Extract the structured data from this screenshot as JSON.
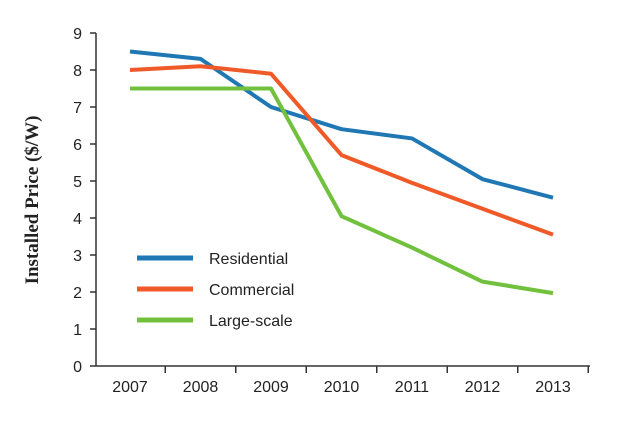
{
  "chart_data": {
    "type": "line",
    "title": "",
    "xlabel": "",
    "ylabel": "Installed Price ($/W)",
    "ylim": [
      0,
      9
    ],
    "yticks": [
      0,
      1,
      2,
      3,
      4,
      5,
      6,
      7,
      8,
      9
    ],
    "categories": [
      "2007",
      "2008",
      "2009",
      "2010",
      "2011",
      "2012",
      "2013"
    ],
    "grid": false,
    "legend_position": "bottom-left",
    "series": [
      {
        "name": "Residential",
        "color": "#1f77b4",
        "values": [
          8.5,
          8.3,
          7.0,
          6.4,
          6.15,
          5.05,
          4.55
        ]
      },
      {
        "name": "Commercial",
        "color": "#f05a28",
        "values": [
          8.0,
          8.1,
          7.9,
          5.7,
          4.95,
          4.25,
          3.55
        ]
      },
      {
        "name": "Large-scale",
        "color": "#72c13e",
        "values": [
          7.5,
          7.5,
          7.5,
          4.05,
          3.2,
          2.28,
          1.97
        ]
      }
    ]
  }
}
